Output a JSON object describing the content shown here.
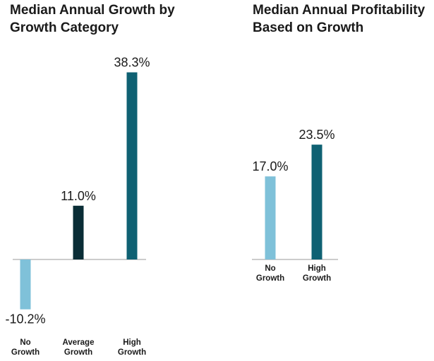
{
  "colors": {
    "light_blue": "#7fc1d9",
    "dark_navy": "#0a2d36",
    "teal": "#0f6173",
    "axis": "#999999"
  },
  "chart_data": [
    {
      "type": "bar",
      "title": "Median Annual Growth by Growth Category",
      "categories": [
        [
          "No",
          "Growth"
        ],
        [
          "Average",
          "Growth"
        ],
        [
          "High",
          "Growth"
        ]
      ],
      "values": [
        -10.2,
        11.0,
        38.3
      ],
      "value_labels": [
        "-10.2%",
        "11.0%",
        "38.3%"
      ],
      "bar_colors": [
        "#7fc1d9",
        "#0a2d36",
        "#0f6173"
      ],
      "unit": "%",
      "grid": false,
      "xlabel": "",
      "ylabel": ""
    },
    {
      "type": "bar",
      "title": "Median Annual Profitability Based on Growth",
      "categories": [
        [
          "No",
          "Growth"
        ],
        [
          "High",
          "Growth"
        ]
      ],
      "values": [
        17.0,
        23.5
      ],
      "value_labels": [
        "17.0%",
        "23.5%"
      ],
      "bar_colors": [
        "#7fc1d9",
        "#0f6173"
      ],
      "unit": "%",
      "grid": false,
      "xlabel": "",
      "ylabel": ""
    }
  ]
}
